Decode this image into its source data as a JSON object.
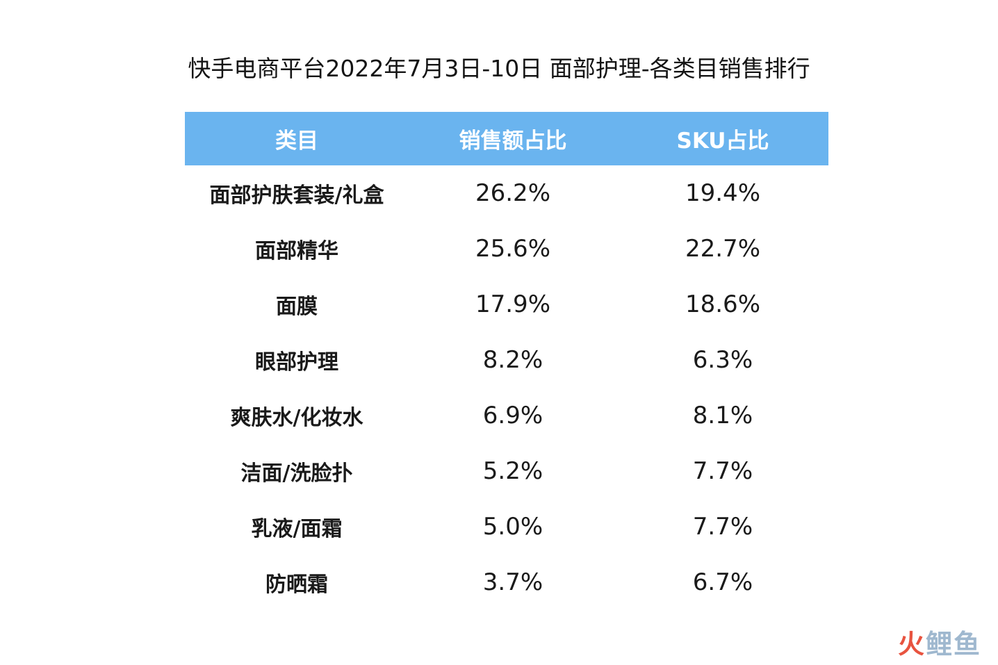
{
  "title": "快手电商平台2022年7月3日-10日 面部护理-各类目销售排行",
  "table": {
    "headers": [
      "类目",
      "销售额占比",
      "SKU占比"
    ],
    "rows": [
      {
        "category": "面部护肤套装/礼盒",
        "sales_share": "26.2%",
        "sku_share": "19.4%"
      },
      {
        "category": "面部精华",
        "sales_share": "25.6%",
        "sku_share": "22.7%"
      },
      {
        "category": "面膜",
        "sales_share": "17.9%",
        "sku_share": "18.6%"
      },
      {
        "category": "眼部护理",
        "sales_share": "8.2%",
        "sku_share": "6.3%"
      },
      {
        "category": "爽肤水/化妆水",
        "sales_share": "6.9%",
        "sku_share": "8.1%"
      },
      {
        "category": "洁面/洗脸扑",
        "sales_share": "5.2%",
        "sku_share": "7.7%"
      },
      {
        "category": "乳液/面霜",
        "sales_share": "5.0%",
        "sku_share": "7.7%"
      },
      {
        "category": "防晒霜",
        "sales_share": "3.7%",
        "sku_share": "6.7%"
      }
    ]
  },
  "watermark": {
    "first_char": "火",
    "rest": "鲤鱼"
  },
  "colors": {
    "header_bg": "#6ab4ef",
    "header_text": "#ffffff",
    "body_text": "#1a1a1a",
    "watermark_red": "#e8533f",
    "watermark_blue": "#9fb8cf"
  }
}
